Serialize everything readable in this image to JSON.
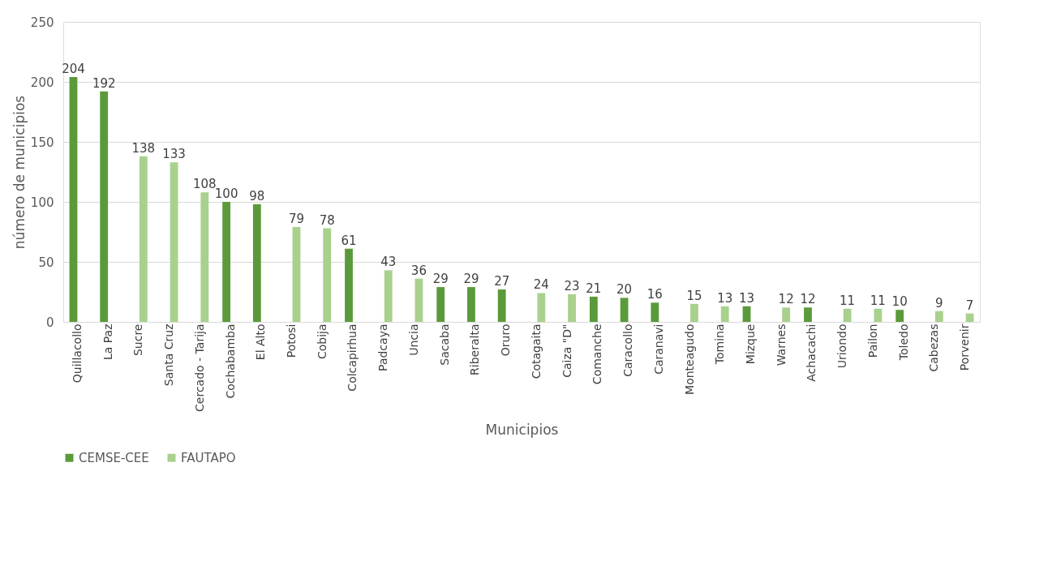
{
  "chart_data": {
    "type": "bar",
    "xlabel": "Municipios",
    "ylabel": "número de municipios",
    "categories": [
      "Quillacollo",
      "La Paz",
      "Sucre",
      "Santa Cruz",
      "Cercado - Tarija",
      "Cochabamba",
      "El Alto",
      "Potosi",
      "Cobija",
      "Colcapirhua",
      "Padcaya",
      "Uncia",
      "Sacaba",
      "Riberalta",
      "Oruro",
      "Cotagaita",
      "Caiza \"D\"",
      "Comanche",
      "Caracollo",
      "Caranavi",
      "Monteagudo",
      "Tomina",
      "Mizque",
      "Warnes",
      "Achacachi",
      "Uriondo",
      "Pailon",
      "Toledo",
      "Cabezas",
      "Porvenir"
    ],
    "series": [
      {
        "name": "CEMSE-CEE",
        "color": "#5b9a3b",
        "values": [
          204,
          192,
          null,
          null,
          null,
          100,
          98,
          null,
          null,
          61,
          null,
          null,
          29,
          29,
          27,
          null,
          null,
          21,
          20,
          16,
          null,
          null,
          13,
          null,
          12,
          null,
          null,
          10,
          null,
          null
        ]
      },
      {
        "name": "FAUTAPO",
        "color": "#a9d18e",
        "values": [
          null,
          null,
          138,
          133,
          108,
          null,
          null,
          79,
          78,
          null,
          43,
          36,
          null,
          null,
          null,
          24,
          23,
          null,
          null,
          null,
          15,
          13,
          null,
          12,
          null,
          11,
          11,
          null,
          9,
          7
        ]
      }
    ],
    "ylim": [
      0,
      250
    ],
    "yticks": [
      0,
      50,
      100,
      150,
      200,
      250
    ],
    "grid": "y",
    "legend": "bottom",
    "data_labels": true
  }
}
